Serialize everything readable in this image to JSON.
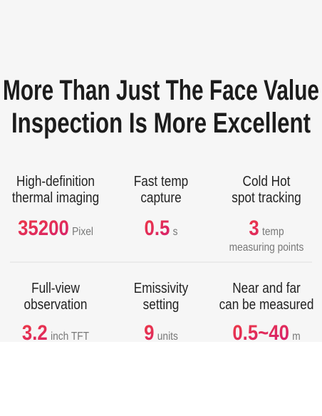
{
  "title": {
    "lines": [
      "More Than Just The Face Value",
      "Inspection Is More Excellent"
    ]
  },
  "features": [
    {
      "label": [
        "High-definition",
        "thermal imaging"
      ],
      "value": "35200",
      "unit": [
        "Pixel"
      ]
    },
    {
      "label": [
        "Fast temp",
        "capture"
      ],
      "value": "0.5",
      "unit": [
        "s"
      ]
    },
    {
      "label": [
        "Cold Hot",
        "spot tracking"
      ],
      "value": "3",
      "unit": [
        "temp",
        "measuring points"
      ]
    },
    {
      "label": [
        "Full-view",
        "observation"
      ],
      "value": "3.2",
      "unit": [
        "inch TFT"
      ]
    },
    {
      "label": [
        "Emissivity",
        "setting"
      ],
      "value": "9",
      "unit": [
        "units"
      ]
    },
    {
      "label": [
        "Near and far",
        "can be measured"
      ],
      "value": "0.5~40",
      "unit": [
        "m"
      ]
    }
  ]
}
